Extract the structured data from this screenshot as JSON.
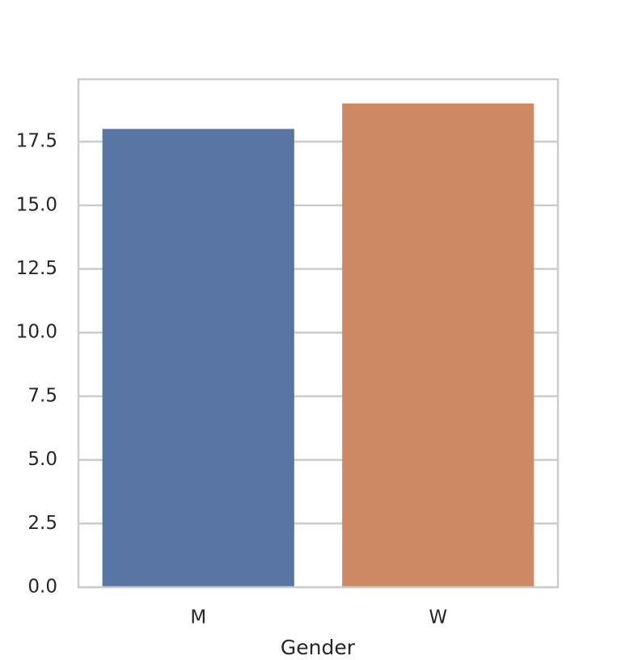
{
  "chart_data": {
    "type": "bar",
    "x_label": "Gender",
    "categories": [
      "M",
      "W"
    ],
    "values": [
      18,
      19
    ],
    "colors": [
      "#5875a4",
      "#cc8963"
    ],
    "ylim": [
      0,
      19.95
    ],
    "yticks": [
      {
        "value": 0,
        "label": "0.0"
      },
      2.5,
      {
        "value": 5,
        "label": "5.0"
      },
      7.5,
      {
        "value": 10,
        "label": "10.0"
      },
      12.5,
      {
        "value": 15,
        "label": "15.0"
      },
      17.5
    ],
    "grid": true
  }
}
